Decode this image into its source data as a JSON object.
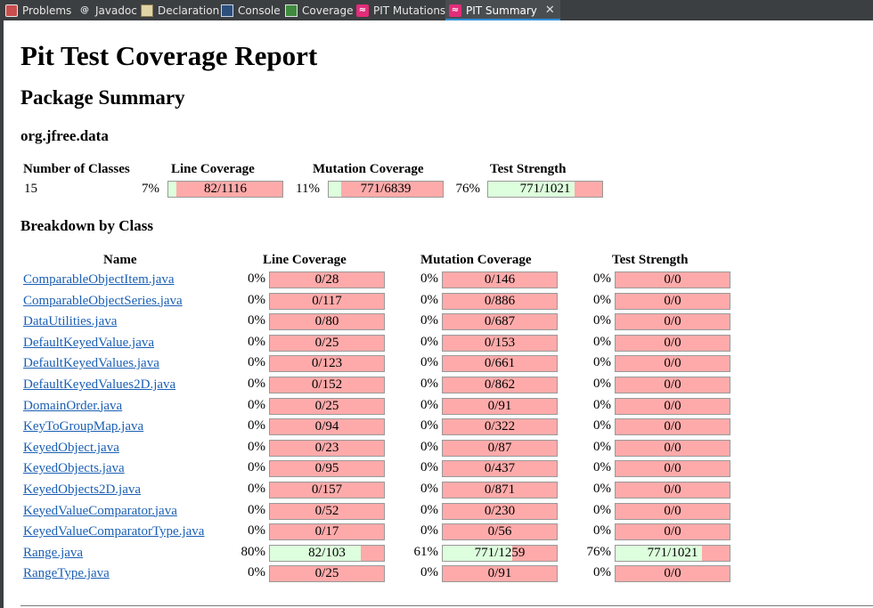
{
  "tabs": [
    {
      "label": "Problems",
      "icon": "problems-icon"
    },
    {
      "label": "Javadoc",
      "icon": "javadoc-icon"
    },
    {
      "label": "Declaration",
      "icon": "declaration-icon"
    },
    {
      "label": "Console",
      "icon": "console-icon"
    },
    {
      "label": "Coverage",
      "icon": "coverage-icon"
    },
    {
      "label": "PIT Mutations",
      "icon": "pit-icon"
    },
    {
      "label": "PIT Summary",
      "icon": "pit-icon",
      "active": true
    }
  ],
  "report": {
    "title": "Pit Test Coverage Report",
    "package_heading": "Package Summary",
    "package_name": "org.jfree.data",
    "breakdown_heading": "Breakdown by Class"
  },
  "summary": {
    "headers": [
      "Number of Classes",
      "Line Coverage",
      "Mutation Coverage",
      "Test Strength"
    ],
    "classes": "15",
    "line": {
      "pct": "7%",
      "label": "82/1116",
      "fraction": 0.07
    },
    "mutation": {
      "pct": "11%",
      "label": "771/6839",
      "fraction": 0.11
    },
    "strength": {
      "pct": "76%",
      "label": "771/1021",
      "fraction": 0.76
    }
  },
  "breakdown": {
    "headers": [
      "Name",
      "Line Coverage",
      "Mutation Coverage",
      "Test Strength"
    ],
    "rows": [
      {
        "name": "ComparableObjectItem.java",
        "line": {
          "pct": "0%",
          "label": "0/28",
          "fraction": 0
        },
        "mutation": {
          "pct": "0%",
          "label": "0/146",
          "fraction": 0
        },
        "strength": {
          "pct": "0%",
          "label": "0/0",
          "fraction": 0
        }
      },
      {
        "name": "ComparableObjectSeries.java",
        "line": {
          "pct": "0%",
          "label": "0/117",
          "fraction": 0
        },
        "mutation": {
          "pct": "0%",
          "label": "0/886",
          "fraction": 0
        },
        "strength": {
          "pct": "0%",
          "label": "0/0",
          "fraction": 0
        }
      },
      {
        "name": "DataUtilities.java",
        "line": {
          "pct": "0%",
          "label": "0/80",
          "fraction": 0
        },
        "mutation": {
          "pct": "0%",
          "label": "0/687",
          "fraction": 0
        },
        "strength": {
          "pct": "0%",
          "label": "0/0",
          "fraction": 0
        }
      },
      {
        "name": "DefaultKeyedValue.java",
        "line": {
          "pct": "0%",
          "label": "0/25",
          "fraction": 0
        },
        "mutation": {
          "pct": "0%",
          "label": "0/153",
          "fraction": 0
        },
        "strength": {
          "pct": "0%",
          "label": "0/0",
          "fraction": 0
        }
      },
      {
        "name": "DefaultKeyedValues.java",
        "line": {
          "pct": "0%",
          "label": "0/123",
          "fraction": 0
        },
        "mutation": {
          "pct": "0%",
          "label": "0/661",
          "fraction": 0
        },
        "strength": {
          "pct": "0%",
          "label": "0/0",
          "fraction": 0
        }
      },
      {
        "name": "DefaultKeyedValues2D.java",
        "line": {
          "pct": "0%",
          "label": "0/152",
          "fraction": 0
        },
        "mutation": {
          "pct": "0%",
          "label": "0/862",
          "fraction": 0
        },
        "strength": {
          "pct": "0%",
          "label": "0/0",
          "fraction": 0
        }
      },
      {
        "name": "DomainOrder.java",
        "line": {
          "pct": "0%",
          "label": "0/25",
          "fraction": 0
        },
        "mutation": {
          "pct": "0%",
          "label": "0/91",
          "fraction": 0
        },
        "strength": {
          "pct": "0%",
          "label": "0/0",
          "fraction": 0
        }
      },
      {
        "name": "KeyToGroupMap.java",
        "line": {
          "pct": "0%",
          "label": "0/94",
          "fraction": 0
        },
        "mutation": {
          "pct": "0%",
          "label": "0/322",
          "fraction": 0
        },
        "strength": {
          "pct": "0%",
          "label": "0/0",
          "fraction": 0
        }
      },
      {
        "name": "KeyedObject.java",
        "line": {
          "pct": "0%",
          "label": "0/23",
          "fraction": 0
        },
        "mutation": {
          "pct": "0%",
          "label": "0/87",
          "fraction": 0
        },
        "strength": {
          "pct": "0%",
          "label": "0/0",
          "fraction": 0
        }
      },
      {
        "name": "KeyedObjects.java",
        "line": {
          "pct": "0%",
          "label": "0/95",
          "fraction": 0
        },
        "mutation": {
          "pct": "0%",
          "label": "0/437",
          "fraction": 0
        },
        "strength": {
          "pct": "0%",
          "label": "0/0",
          "fraction": 0
        }
      },
      {
        "name": "KeyedObjects2D.java",
        "line": {
          "pct": "0%",
          "label": "0/157",
          "fraction": 0
        },
        "mutation": {
          "pct": "0%",
          "label": "0/871",
          "fraction": 0
        },
        "strength": {
          "pct": "0%",
          "label": "0/0",
          "fraction": 0
        }
      },
      {
        "name": "KeyedValueComparator.java",
        "line": {
          "pct": "0%",
          "label": "0/52",
          "fraction": 0
        },
        "mutation": {
          "pct": "0%",
          "label": "0/230",
          "fraction": 0
        },
        "strength": {
          "pct": "0%",
          "label": "0/0",
          "fraction": 0
        }
      },
      {
        "name": "KeyedValueComparatorType.java",
        "line": {
          "pct": "0%",
          "label": "0/17",
          "fraction": 0
        },
        "mutation": {
          "pct": "0%",
          "label": "0/56",
          "fraction": 0
        },
        "strength": {
          "pct": "0%",
          "label": "0/0",
          "fraction": 0
        }
      },
      {
        "name": "Range.java",
        "line": {
          "pct": "80%",
          "label": "82/103",
          "fraction": 0.8
        },
        "mutation": {
          "pct": "61%",
          "label": "771/1259",
          "fraction": 0.61
        },
        "strength": {
          "pct": "76%",
          "label": "771/1021",
          "fraction": 0.76
        }
      },
      {
        "name": "RangeType.java",
        "line": {
          "pct": "0%",
          "label": "0/25",
          "fraction": 0
        },
        "mutation": {
          "pct": "0%",
          "label": "0/91",
          "fraction": 0
        },
        "strength": {
          "pct": "0%",
          "label": "0/0",
          "fraction": 0
        }
      }
    ]
  },
  "colors": {
    "covered": "#ddffdd",
    "uncovered": "#ffaaaa",
    "link": "#1a5fb4",
    "pit_accent": "#e12d7a",
    "tabbar": "#3c3f41"
  }
}
